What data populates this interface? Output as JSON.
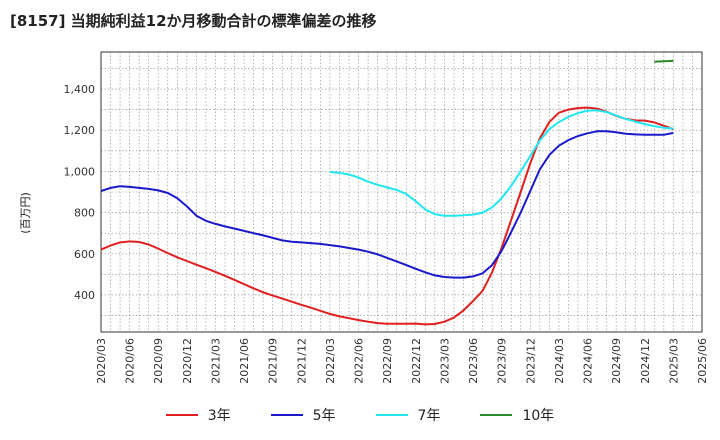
{
  "chart_data": {
    "type": "line",
    "title": "[8157]  当期純利益12か月移動合計の標準偏差の推移",
    "ylabel": "(百万円)",
    "ylim": [
      220,
      1580
    ],
    "yticks": [
      400,
      600,
      800,
      1000,
      1200,
      1400
    ],
    "xlim": [
      "2020-03",
      "2025-06"
    ],
    "xticks": [
      "2020/03",
      "2020/06",
      "2020/09",
      "2020/12",
      "2021/03",
      "2021/06",
      "2021/09",
      "2021/12",
      "2022/03",
      "2022/06",
      "2022/09",
      "2022/12",
      "2023/03",
      "2023/06",
      "2023/09",
      "2023/12",
      "2024/03",
      "2024/06",
      "2024/09",
      "2024/12",
      "2025/03",
      "2025/06"
    ],
    "grid": true,
    "legend_position": "bottom",
    "series": [
      {
        "name": "3年",
        "color": "#e02020",
        "points": [
          [
            "2020-03",
            620
          ],
          [
            "2020-04",
            640
          ],
          [
            "2020-05",
            655
          ],
          [
            "2020-06",
            660
          ],
          [
            "2020-07",
            657
          ],
          [
            "2020-08",
            645
          ],
          [
            "2020-09",
            625
          ],
          [
            "2020-10",
            603
          ],
          [
            "2020-11",
            583
          ],
          [
            "2020-12",
            565
          ],
          [
            "2021-01",
            547
          ],
          [
            "2021-02",
            530
          ],
          [
            "2021-03",
            512
          ],
          [
            "2021-04",
            493
          ],
          [
            "2021-05",
            473
          ],
          [
            "2021-06",
            452
          ],
          [
            "2021-07",
            432
          ],
          [
            "2021-08",
            413
          ],
          [
            "2021-09",
            397
          ],
          [
            "2021-10",
            382
          ],
          [
            "2021-11",
            367
          ],
          [
            "2021-12",
            352
          ],
          [
            "2022-01",
            338
          ],
          [
            "2022-02",
            323
          ],
          [
            "2022-03",
            308
          ],
          [
            "2022-04",
            296
          ],
          [
            "2022-05",
            287
          ],
          [
            "2022-06",
            278
          ],
          [
            "2022-07",
            270
          ],
          [
            "2022-08",
            263
          ],
          [
            "2022-09",
            260
          ],
          [
            "2022-10",
            260
          ],
          [
            "2022-11",
            260
          ],
          [
            "2022-12",
            261
          ],
          [
            "2023-01",
            257
          ],
          [
            "2023-02",
            259
          ],
          [
            "2023-03",
            270
          ],
          [
            "2023-04",
            290
          ],
          [
            "2023-05",
            325
          ],
          [
            "2023-06",
            370
          ],
          [
            "2023-07",
            420
          ],
          [
            "2023-08",
            510
          ],
          [
            "2023-09",
            630
          ],
          [
            "2023-10",
            765
          ],
          [
            "2023-11",
            900
          ],
          [
            "2023-12",
            1040
          ],
          [
            "2024-01",
            1160
          ],
          [
            "2024-02",
            1240
          ],
          [
            "2024-03",
            1285
          ],
          [
            "2024-04",
            1300
          ],
          [
            "2024-05",
            1308
          ],
          [
            "2024-06",
            1310
          ],
          [
            "2024-07",
            1305
          ],
          [
            "2024-08",
            1290
          ],
          [
            "2024-09",
            1270
          ],
          [
            "2024-10",
            1255
          ],
          [
            "2024-11",
            1248
          ],
          [
            "2024-12",
            1247
          ],
          [
            "2025-01",
            1238
          ],
          [
            "2025-02",
            1222
          ],
          [
            "2025-03",
            1205
          ]
        ]
      },
      {
        "name": "5年",
        "color": "#1a1acc",
        "points": [
          [
            "2020-03",
            905
          ],
          [
            "2020-04",
            920
          ],
          [
            "2020-05",
            928
          ],
          [
            "2020-06",
            925
          ],
          [
            "2020-07",
            920
          ],
          [
            "2020-08",
            915
          ],
          [
            "2020-09",
            908
          ],
          [
            "2020-10",
            895
          ],
          [
            "2020-11",
            870
          ],
          [
            "2020-12",
            830
          ],
          [
            "2021-01",
            785
          ],
          [
            "2021-02",
            760
          ],
          [
            "2021-03",
            745
          ],
          [
            "2021-04",
            733
          ],
          [
            "2021-05",
            722
          ],
          [
            "2021-06",
            711
          ],
          [
            "2021-07",
            700
          ],
          [
            "2021-08",
            689
          ],
          [
            "2021-09",
            677
          ],
          [
            "2021-10",
            665
          ],
          [
            "2021-11",
            658
          ],
          [
            "2021-12",
            655
          ],
          [
            "2022-01",
            652
          ],
          [
            "2022-02",
            648
          ],
          [
            "2022-03",
            642
          ],
          [
            "2022-04",
            636
          ],
          [
            "2022-05",
            628
          ],
          [
            "2022-06",
            620
          ],
          [
            "2022-07",
            610
          ],
          [
            "2022-08",
            597
          ],
          [
            "2022-09",
            580
          ],
          [
            "2022-10",
            563
          ],
          [
            "2022-11",
            545
          ],
          [
            "2022-12",
            527
          ],
          [
            "2023-01",
            510
          ],
          [
            "2023-02",
            495
          ],
          [
            "2023-03",
            487
          ],
          [
            "2023-04",
            484
          ],
          [
            "2023-05",
            484
          ],
          [
            "2023-06",
            490
          ],
          [
            "2023-07",
            505
          ],
          [
            "2023-08",
            545
          ],
          [
            "2023-09",
            615
          ],
          [
            "2023-10",
            705
          ],
          [
            "2023-11",
            800
          ],
          [
            "2023-12",
            905
          ],
          [
            "2024-01",
            1010
          ],
          [
            "2024-02",
            1080
          ],
          [
            "2024-03",
            1125
          ],
          [
            "2024-04",
            1152
          ],
          [
            "2024-05",
            1172
          ],
          [
            "2024-06",
            1185
          ],
          [
            "2024-07",
            1195
          ],
          [
            "2024-08",
            1195
          ],
          [
            "2024-09",
            1190
          ],
          [
            "2024-10",
            1183
          ],
          [
            "2024-11",
            1180
          ],
          [
            "2024-12",
            1178
          ],
          [
            "2025-01",
            1178
          ],
          [
            "2025-02",
            1178
          ],
          [
            "2025-03",
            1187
          ]
        ]
      },
      {
        "name": "7年",
        "color": "#22e6f0",
        "points": [
          [
            "2022-03",
            997
          ],
          [
            "2022-04",
            993
          ],
          [
            "2022-05",
            985
          ],
          [
            "2022-06",
            970
          ],
          [
            "2022-07",
            950
          ],
          [
            "2022-08",
            935
          ],
          [
            "2022-09",
            922
          ],
          [
            "2022-10",
            910
          ],
          [
            "2022-11",
            890
          ],
          [
            "2022-12",
            855
          ],
          [
            "2023-01",
            815
          ],
          [
            "2023-02",
            792
          ],
          [
            "2023-03",
            785
          ],
          [
            "2023-04",
            785
          ],
          [
            "2023-05",
            787
          ],
          [
            "2023-06",
            790
          ],
          [
            "2023-07",
            800
          ],
          [
            "2023-08",
            825
          ],
          [
            "2023-09",
            870
          ],
          [
            "2023-10",
            930
          ],
          [
            "2023-11",
            1000
          ],
          [
            "2023-12",
            1075
          ],
          [
            "2024-01",
            1150
          ],
          [
            "2024-02",
            1205
          ],
          [
            "2024-03",
            1240
          ],
          [
            "2024-04",
            1265
          ],
          [
            "2024-05",
            1283
          ],
          [
            "2024-06",
            1295
          ],
          [
            "2024-07",
            1297
          ],
          [
            "2024-08",
            1288
          ],
          [
            "2024-09",
            1272
          ],
          [
            "2024-10",
            1255
          ],
          [
            "2024-11",
            1242
          ],
          [
            "2024-12",
            1230
          ],
          [
            "2025-01",
            1220
          ],
          [
            "2025-02",
            1212
          ],
          [
            "2025-03",
            1208
          ]
        ]
      },
      {
        "name": "10年",
        "color": "#2a8a2a",
        "points": [
          [
            "2025-01",
            1533
          ],
          [
            "2025-02",
            1535
          ],
          [
            "2025-03",
            1537
          ]
        ]
      }
    ]
  }
}
